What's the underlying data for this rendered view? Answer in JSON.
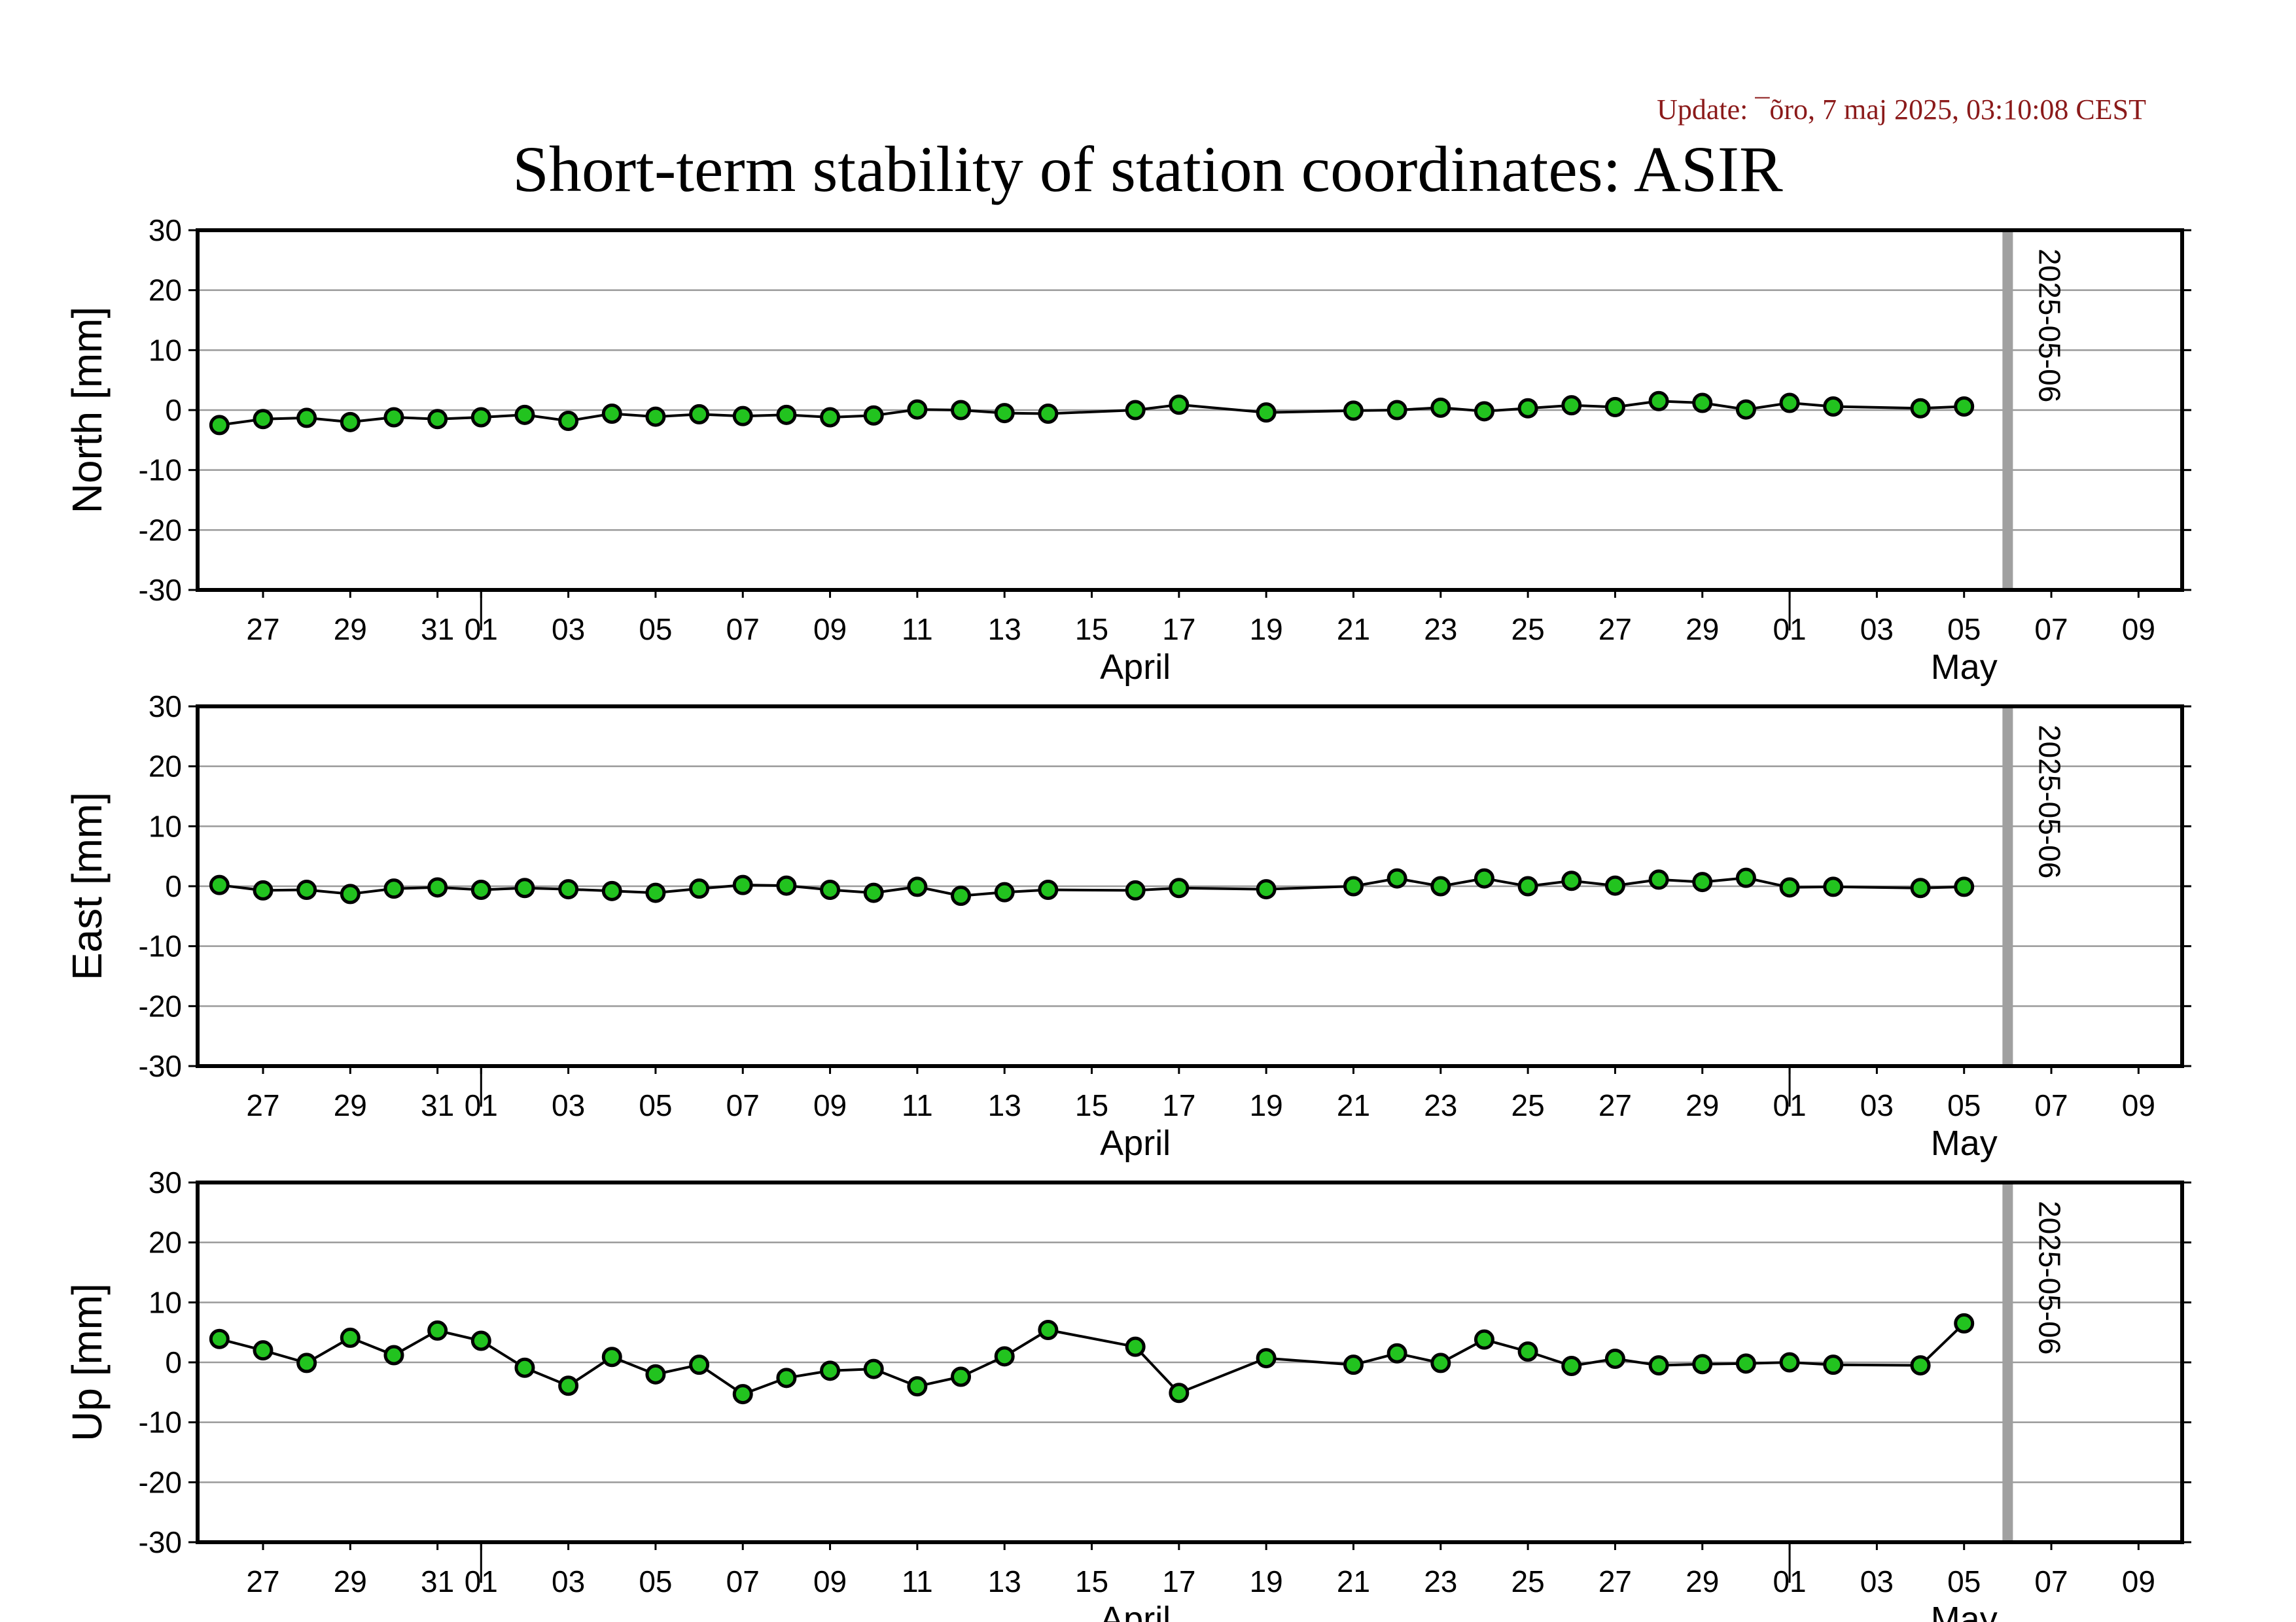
{
  "update_text": "Update: ¯õro, 7 maj 2025, 03:10:08 CEST",
  "title": "Short-term stability of station coordinates: ASIR",
  "colors": {
    "marker_fill": "#22c31f",
    "marker_stroke": "#000000",
    "grid": "#9a9a9a",
    "current_line": "#a0a0a0",
    "update_text": "#8b1a1a"
  },
  "chart_data": [
    {
      "type": "line",
      "ylabel": "North [mm]",
      "ylim": [
        -30,
        30
      ],
      "yticks": [
        -30,
        -20,
        -10,
        0,
        10,
        20,
        30
      ],
      "xlim": [
        "2025-03-25T12:00",
        "2025-05-10T00:00"
      ],
      "x_ticks": [
        {
          "date": "2025-03-27",
          "label": "27"
        },
        {
          "date": "2025-03-29",
          "label": "29"
        },
        {
          "date": "2025-03-31",
          "label": "31"
        },
        {
          "date": "2025-04-01",
          "label": "01"
        },
        {
          "date": "2025-04-03",
          "label": "03"
        },
        {
          "date": "2025-04-05",
          "label": "05"
        },
        {
          "date": "2025-04-07",
          "label": "07"
        },
        {
          "date": "2025-04-09",
          "label": "09"
        },
        {
          "date": "2025-04-11",
          "label": "11"
        },
        {
          "date": "2025-04-13",
          "label": "13"
        },
        {
          "date": "2025-04-15",
          "label": "15"
        },
        {
          "date": "2025-04-17",
          "label": "17"
        },
        {
          "date": "2025-04-19",
          "label": "19"
        },
        {
          "date": "2025-04-21",
          "label": "21"
        },
        {
          "date": "2025-04-23",
          "label": "23"
        },
        {
          "date": "2025-04-25",
          "label": "25"
        },
        {
          "date": "2025-04-27",
          "label": "27"
        },
        {
          "date": "2025-04-29",
          "label": "29"
        },
        {
          "date": "2025-05-01",
          "label": "01"
        },
        {
          "date": "2025-05-03",
          "label": "03"
        },
        {
          "date": "2025-05-05",
          "label": "05"
        },
        {
          "date": "2025-05-07",
          "label": "07"
        },
        {
          "date": "2025-05-09",
          "label": "09"
        }
      ],
      "month_labels": [
        {
          "label": "April",
          "date": "2025-04-16"
        },
        {
          "label": "May",
          "date": "2025-05-05"
        }
      ],
      "month_boundaries": [
        "2025-04-01",
        "2025-05-01"
      ],
      "current_date": "2025-05-06",
      "current_date_label": "2025-05-06",
      "grid": true,
      "points": [
        [
          "2025-03-26",
          -2.5
        ],
        [
          "2025-03-27",
          -1.5
        ],
        [
          "2025-03-28",
          -1.3
        ],
        [
          "2025-03-29",
          -2.0
        ],
        [
          "2025-03-30",
          -1.2
        ],
        [
          "2025-03-31",
          -1.5
        ],
        [
          "2025-04-01",
          -1.2
        ],
        [
          "2025-04-02",
          -0.8
        ],
        [
          "2025-04-03",
          -1.8
        ],
        [
          "2025-04-04",
          -0.6
        ],
        [
          "2025-04-05",
          -1.1
        ],
        [
          "2025-04-06",
          -0.7
        ],
        [
          "2025-04-07",
          -1.0
        ],
        [
          "2025-04-08",
          -0.8
        ],
        [
          "2025-04-09",
          -1.2
        ],
        [
          "2025-04-10",
          -0.9
        ],
        [
          "2025-04-11",
          0.1
        ],
        [
          "2025-04-12",
          0.0
        ],
        [
          "2025-04-13",
          -0.5
        ],
        [
          "2025-04-14",
          -0.6
        ],
        [
          "2025-04-16",
          0.0
        ],
        [
          "2025-04-17",
          0.9
        ],
        [
          "2025-04-19",
          -0.4
        ],
        [
          "2025-04-21",
          -0.1
        ],
        [
          "2025-04-22",
          0.0
        ],
        [
          "2025-04-23",
          0.4
        ],
        [
          "2025-04-24",
          -0.2
        ],
        [
          "2025-04-25",
          0.3
        ],
        [
          "2025-04-26",
          0.8
        ],
        [
          "2025-04-27",
          0.5
        ],
        [
          "2025-04-28",
          1.5
        ],
        [
          "2025-04-29",
          1.2
        ],
        [
          "2025-04-30",
          0.1
        ],
        [
          "2025-05-01",
          1.2
        ],
        [
          "2025-05-02",
          0.6
        ],
        [
          "2025-05-04",
          0.3
        ],
        [
          "2025-05-05",
          0.6
        ]
      ]
    },
    {
      "type": "line",
      "ylabel": "East [mm]",
      "ylim": [
        -30,
        30
      ],
      "yticks": [
        -30,
        -20,
        -10,
        0,
        10,
        20,
        30
      ],
      "xlim": [
        "2025-03-25T12:00",
        "2025-05-10T00:00"
      ],
      "x_ticks": [
        {
          "date": "2025-03-27",
          "label": "27"
        },
        {
          "date": "2025-03-29",
          "label": "29"
        },
        {
          "date": "2025-03-31",
          "label": "31"
        },
        {
          "date": "2025-04-01",
          "label": "01"
        },
        {
          "date": "2025-04-03",
          "label": "03"
        },
        {
          "date": "2025-04-05",
          "label": "05"
        },
        {
          "date": "2025-04-07",
          "label": "07"
        },
        {
          "date": "2025-04-09",
          "label": "09"
        },
        {
          "date": "2025-04-11",
          "label": "11"
        },
        {
          "date": "2025-04-13",
          "label": "13"
        },
        {
          "date": "2025-04-15",
          "label": "15"
        },
        {
          "date": "2025-04-17",
          "label": "17"
        },
        {
          "date": "2025-04-19",
          "label": "19"
        },
        {
          "date": "2025-04-21",
          "label": "21"
        },
        {
          "date": "2025-04-23",
          "label": "23"
        },
        {
          "date": "2025-04-25",
          "label": "25"
        },
        {
          "date": "2025-04-27",
          "label": "27"
        },
        {
          "date": "2025-04-29",
          "label": "29"
        },
        {
          "date": "2025-05-01",
          "label": "01"
        },
        {
          "date": "2025-05-03",
          "label": "03"
        },
        {
          "date": "2025-05-05",
          "label": "05"
        },
        {
          "date": "2025-05-07",
          "label": "07"
        },
        {
          "date": "2025-05-09",
          "label": "09"
        }
      ],
      "month_labels": [
        {
          "label": "April",
          "date": "2025-04-16"
        },
        {
          "label": "May",
          "date": "2025-05-05"
        }
      ],
      "month_boundaries": [
        "2025-04-01",
        "2025-05-01"
      ],
      "current_date": "2025-05-06",
      "current_date_label": "2025-05-06",
      "grid": true,
      "points": [
        [
          "2025-03-26",
          0.2
        ],
        [
          "2025-03-27",
          -0.7
        ],
        [
          "2025-03-28",
          -0.6
        ],
        [
          "2025-03-29",
          -1.3
        ],
        [
          "2025-03-30",
          -0.4
        ],
        [
          "2025-03-31",
          -0.2
        ],
        [
          "2025-04-01",
          -0.6
        ],
        [
          "2025-04-02",
          -0.3
        ],
        [
          "2025-04-03",
          -0.5
        ],
        [
          "2025-04-04",
          -0.8
        ],
        [
          "2025-04-05",
          -1.1
        ],
        [
          "2025-04-06",
          -0.4
        ],
        [
          "2025-04-07",
          0.2
        ],
        [
          "2025-04-08",
          0.1
        ],
        [
          "2025-04-09",
          -0.6
        ],
        [
          "2025-04-10",
          -1.1
        ],
        [
          "2025-04-11",
          -0.1
        ],
        [
          "2025-04-12",
          -1.6
        ],
        [
          "2025-04-13",
          -1.0
        ],
        [
          "2025-04-14",
          -0.6
        ],
        [
          "2025-04-16",
          -0.7
        ],
        [
          "2025-04-17",
          -0.3
        ],
        [
          "2025-04-19",
          -0.5
        ],
        [
          "2025-04-21",
          0.0
        ],
        [
          "2025-04-22",
          1.3
        ],
        [
          "2025-04-23",
          0.0
        ],
        [
          "2025-04-24",
          1.3
        ],
        [
          "2025-04-25",
          0.0
        ],
        [
          "2025-04-26",
          0.9
        ],
        [
          "2025-04-27",
          0.1
        ],
        [
          "2025-04-28",
          1.1
        ],
        [
          "2025-04-29",
          0.7
        ],
        [
          "2025-04-30",
          1.4
        ],
        [
          "2025-05-01",
          -0.2
        ],
        [
          "2025-05-02",
          -0.1
        ],
        [
          "2025-05-04",
          -0.3
        ],
        [
          "2025-05-05",
          -0.1
        ]
      ]
    },
    {
      "type": "line",
      "ylabel": "Up [mm]",
      "ylim": [
        -30,
        30
      ],
      "yticks": [
        -30,
        -20,
        -10,
        0,
        10,
        20,
        30
      ],
      "xlim": [
        "2025-03-25T12:00",
        "2025-05-10T00:00"
      ],
      "x_ticks": [
        {
          "date": "2025-03-27",
          "label": "27"
        },
        {
          "date": "2025-03-29",
          "label": "29"
        },
        {
          "date": "2025-03-31",
          "label": "31"
        },
        {
          "date": "2025-04-01",
          "label": "01"
        },
        {
          "date": "2025-04-03",
          "label": "03"
        },
        {
          "date": "2025-04-05",
          "label": "05"
        },
        {
          "date": "2025-04-07",
          "label": "07"
        },
        {
          "date": "2025-04-09",
          "label": "09"
        },
        {
          "date": "2025-04-11",
          "label": "11"
        },
        {
          "date": "2025-04-13",
          "label": "13"
        },
        {
          "date": "2025-04-15",
          "label": "15"
        },
        {
          "date": "2025-04-17",
          "label": "17"
        },
        {
          "date": "2025-04-19",
          "label": "19"
        },
        {
          "date": "2025-04-21",
          "label": "21"
        },
        {
          "date": "2025-04-23",
          "label": "23"
        },
        {
          "date": "2025-04-25",
          "label": "25"
        },
        {
          "date": "2025-04-27",
          "label": "27"
        },
        {
          "date": "2025-04-29",
          "label": "29"
        },
        {
          "date": "2025-05-01",
          "label": "01"
        },
        {
          "date": "2025-05-03",
          "label": "03"
        },
        {
          "date": "2025-05-05",
          "label": "05"
        },
        {
          "date": "2025-05-07",
          "label": "07"
        },
        {
          "date": "2025-05-09",
          "label": "09"
        }
      ],
      "month_labels": [
        {
          "label": "April",
          "date": "2025-04-16"
        },
        {
          "label": "May",
          "date": "2025-05-05"
        }
      ],
      "month_boundaries": [
        "2025-04-01",
        "2025-05-01"
      ],
      "current_date": "2025-05-06",
      "current_date_label": "2025-05-06",
      "grid": true,
      "points": [
        [
          "2025-03-26",
          3.9
        ],
        [
          "2025-03-27",
          2.0
        ],
        [
          "2025-03-28",
          -0.1
        ],
        [
          "2025-03-29",
          4.1
        ],
        [
          "2025-03-30",
          1.2
        ],
        [
          "2025-03-31",
          5.3
        ],
        [
          "2025-04-01",
          3.6
        ],
        [
          "2025-04-02",
          -0.9
        ],
        [
          "2025-04-03",
          -3.9
        ],
        [
          "2025-04-04",
          0.9
        ],
        [
          "2025-04-05",
          -2.0
        ],
        [
          "2025-04-06",
          -0.4
        ],
        [
          "2025-04-07",
          -5.3
        ],
        [
          "2025-04-08",
          -2.6
        ],
        [
          "2025-04-09",
          -1.4
        ],
        [
          "2025-04-10",
          -1.1
        ],
        [
          "2025-04-11",
          -4.0
        ],
        [
          "2025-04-12",
          -2.4
        ],
        [
          "2025-04-13",
          1.0
        ],
        [
          "2025-04-14",
          5.4
        ],
        [
          "2025-04-16",
          2.6
        ],
        [
          "2025-04-17",
          -5.1
        ],
        [
          "2025-04-19",
          0.7
        ],
        [
          "2025-04-21",
          -0.4
        ],
        [
          "2025-04-22",
          1.5
        ],
        [
          "2025-04-23",
          -0.1
        ],
        [
          "2025-04-24",
          3.8
        ],
        [
          "2025-04-25",
          1.8
        ],
        [
          "2025-04-26",
          -0.6
        ],
        [
          "2025-04-27",
          0.6
        ],
        [
          "2025-04-28",
          -0.5
        ],
        [
          "2025-04-29",
          -0.3
        ],
        [
          "2025-04-30",
          -0.2
        ],
        [
          "2025-05-01",
          0.0
        ],
        [
          "2025-05-02",
          -0.4
        ],
        [
          "2025-05-04",
          -0.5
        ],
        [
          "2025-05-05",
          6.5
        ]
      ]
    }
  ]
}
